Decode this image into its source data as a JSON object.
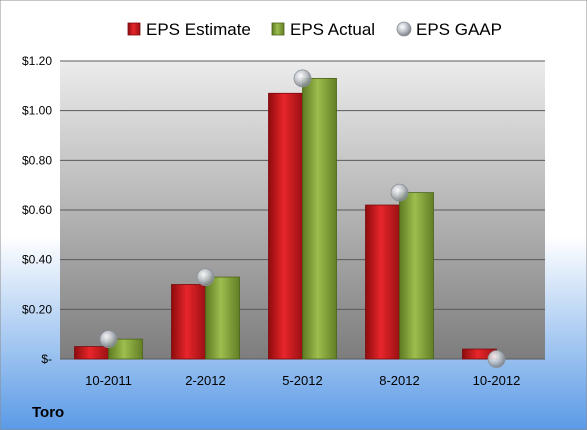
{
  "chart_data": {
    "type": "bar",
    "company": "Toro",
    "categories": [
      "10-2011",
      "2-2012",
      "5-2012",
      "8-2012",
      "10-2012"
    ],
    "series": [
      {
        "name": "EPS Estimate",
        "kind": "bar",
        "color": "#d0181c",
        "values": [
          0.05,
          0.3,
          1.07,
          0.62,
          0.04
        ]
      },
      {
        "name": "EPS Actual",
        "kind": "bar",
        "color": "#86a63a",
        "values": [
          0.08,
          0.33,
          1.13,
          0.67,
          null
        ]
      },
      {
        "name": "EPS GAAP",
        "kind": "marker",
        "color": "#b9bec4",
        "values": [
          0.08,
          0.33,
          1.13,
          0.67,
          0.0
        ]
      }
    ],
    "ylim": [
      0,
      1.2
    ],
    "yticks": [
      0,
      0.2,
      0.4,
      0.6,
      0.8,
      1.0,
      1.2
    ],
    "ytick_labels": [
      "$-",
      "$0.20",
      "$0.40",
      "$0.60",
      "$0.80",
      "$1.00",
      "$1.20"
    ],
    "grid": true,
    "legend_position": "top"
  },
  "colors": {
    "background_top": "#ffffff",
    "background_bottom": "#5a9ae6",
    "plot_top": "#ececec",
    "plot_bottom": "#7d7d7d",
    "gridline": "#5a5a5a"
  }
}
